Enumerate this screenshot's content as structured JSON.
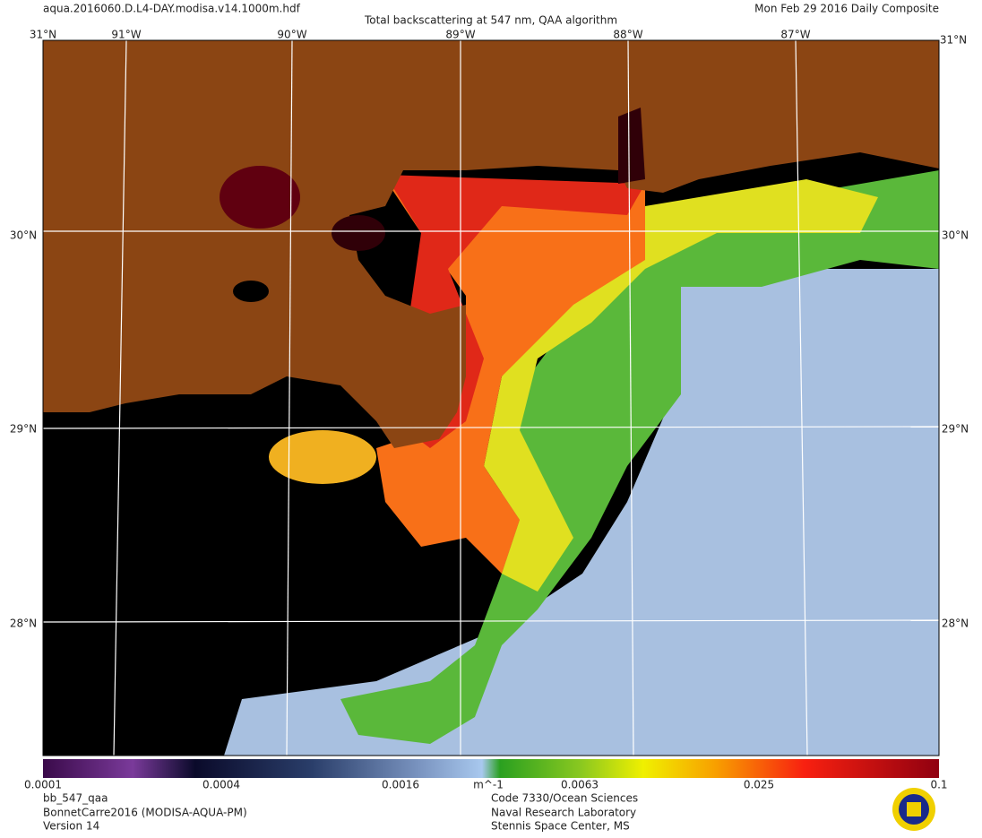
{
  "header": {
    "file": "aqua.2016060.D.L4-DAY.modisa.v14.1000m.hdf",
    "title": "Total backscattering at 547 nm, QAA algorithm",
    "date": "Mon Feb 29 2016 Daily Composite"
  },
  "map": {
    "corner_label": "31°N",
    "lon_labels": [
      "91°W",
      "90°W",
      "89°W",
      "88°W",
      "87°W"
    ],
    "lat_labels": [
      "30°N",
      "29°N",
      "28°N"
    ]
  },
  "colorbar": {
    "labels": [
      "0.0001",
      "0.0004",
      "0.0016",
      "m^-1",
      "0.0063",
      "0.025",
      "0.1"
    ]
  },
  "footer": {
    "left": [
      "bb_547_qaa",
      "BonnetCarre2016 (MODISA-AQUA-PM)",
      "Version 14"
    ],
    "center": [
      "Code 7330/Ocean Sciences",
      "Naval Research Laboratory",
      "Stennis Space Center, MS"
    ]
  }
}
